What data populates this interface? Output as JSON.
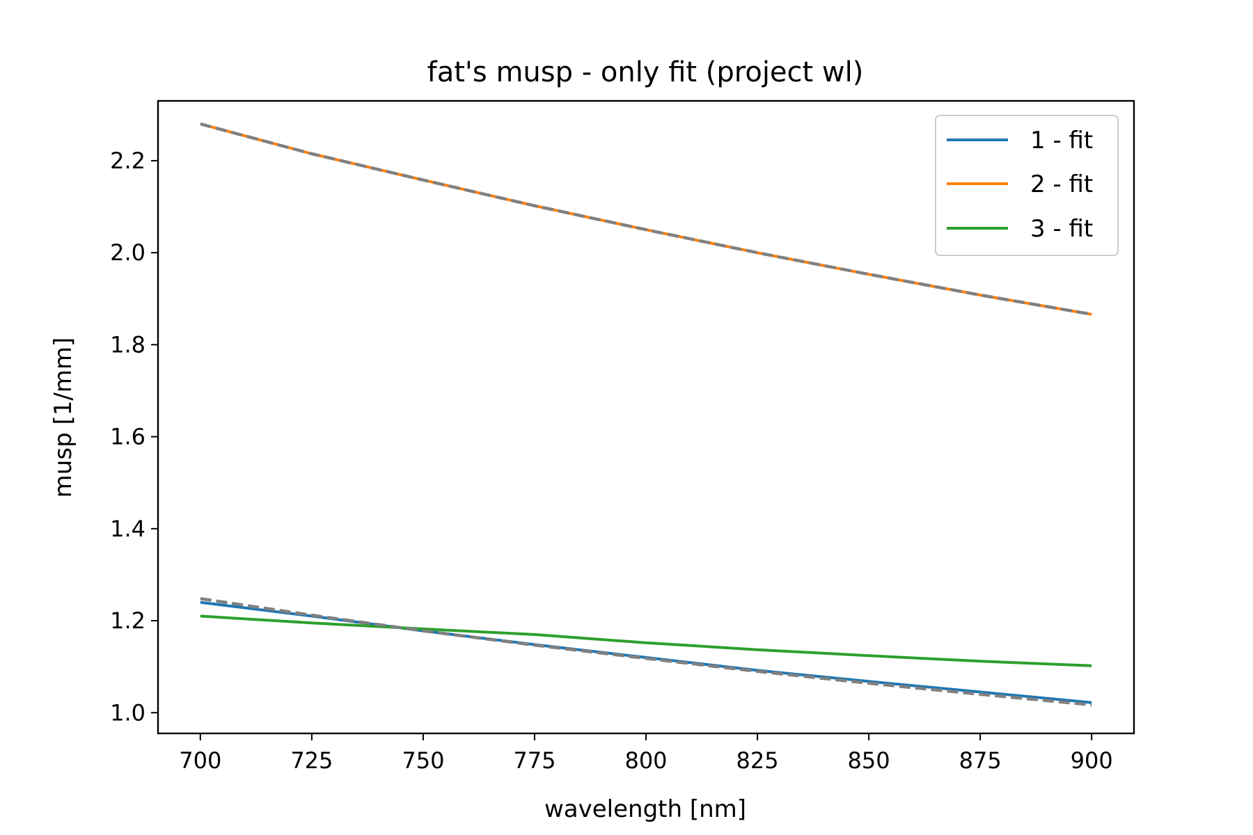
{
  "chart_data": {
    "type": "line",
    "title": "fat's musp - only fit (project wl)",
    "xlabel": "wavelength [nm]",
    "ylabel": "musp [1/mm]",
    "xlim": [
      690.5,
      909.5
    ],
    "ylim": [
      0.955,
      2.33
    ],
    "xticks": [
      700,
      725,
      750,
      775,
      800,
      825,
      850,
      875,
      900
    ],
    "yticks": [
      1.0,
      1.2,
      1.4,
      1.6,
      1.8,
      2.0,
      2.2
    ],
    "xtick_labels": [
      "700",
      "725",
      "750",
      "775",
      "800",
      "825",
      "850",
      "875",
      "900"
    ],
    "ytick_labels": [
      "1.0",
      "1.2",
      "1.4",
      "1.6",
      "1.8",
      "2.0",
      "2.2"
    ],
    "x": [
      700,
      725,
      750,
      775,
      800,
      825,
      850,
      875,
      900
    ],
    "grid": false,
    "legend_position": "top-right",
    "series": [
      {
        "name": "1 - fit",
        "color": "#1f77b4",
        "style": "solid",
        "values": [
          1.24,
          1.21,
          1.178,
          1.148,
          1.12,
          1.092,
          1.068,
          1.045,
          1.022
        ]
      },
      {
        "name": "2 - fit",
        "color": "#ff7f0e",
        "style": "solid",
        "values": [
          2.28,
          2.215,
          2.158,
          2.102,
          2.05,
          2.0,
          1.953,
          1.908,
          1.866
        ]
      },
      {
        "name": "3 - fit",
        "color": "#2ca02c",
        "style": "solid",
        "values": [
          1.21,
          1.195,
          1.182,
          1.17,
          1.152,
          1.137,
          1.124,
          1.112,
          1.102
        ]
      },
      {
        "name": "",
        "color": "#808080",
        "style": "dashed",
        "values": [
          1.248,
          1.212,
          1.178,
          1.147,
          1.118,
          1.09,
          1.064,
          1.04,
          1.017
        ]
      },
      {
        "name": "",
        "color": "#808080",
        "style": "dashed",
        "values": [
          2.28,
          2.215,
          2.158,
          2.102,
          2.05,
          2.0,
          1.953,
          1.908,
          1.866
        ]
      }
    ]
  }
}
